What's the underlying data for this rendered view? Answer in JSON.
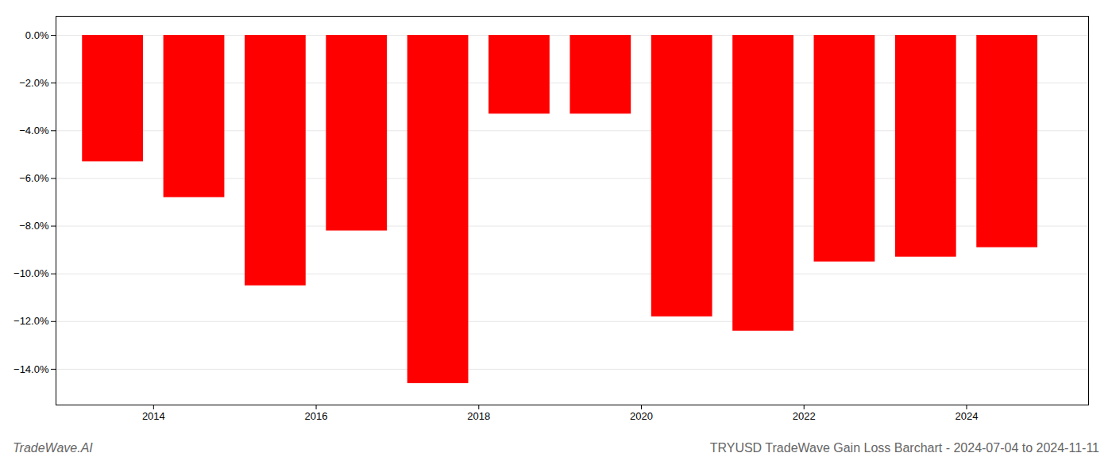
{
  "chart_data": {
    "type": "bar",
    "title": "TRYUSD TradeWave Gain Loss Barchart - 2024-07-04 to 2024-11-11",
    "annotations": [
      "TradeWave.AI"
    ],
    "x": [
      2013.5,
      2014.5,
      2015.5,
      2016.5,
      2017.5,
      2018.5,
      2019.5,
      2020.5,
      2021.5,
      2022.5,
      2023.5,
      2024.5
    ],
    "values": [
      -5.3,
      -6.8,
      -10.5,
      -8.2,
      -14.6,
      -3.3,
      -3.3,
      -11.8,
      -12.4,
      -9.5,
      -9.3,
      -8.9
    ],
    "color": "#ff0000",
    "xlim": [
      2012.8,
      2025.5
    ],
    "xticks": [
      2014,
      2016,
      2018,
      2020,
      2022,
      2024
    ],
    "ylim": [
      -15.5,
      0.8
    ],
    "yticks": [
      {
        "value": 0.0,
        "label": "0.0%"
      },
      {
        "value": -2.0,
        "label": "−2.0%"
      },
      {
        "value": -4.0,
        "label": "−4.0%"
      },
      {
        "value": -6.0,
        "label": "−6.0%"
      },
      {
        "value": -8.0,
        "label": "−8.0%"
      },
      {
        "value": -10.0,
        "label": "−10.0%"
      },
      {
        "value": -12.0,
        "label": "−12.0%"
      },
      {
        "value": -14.0,
        "label": "−14.0%"
      }
    ],
    "grid": true
  }
}
